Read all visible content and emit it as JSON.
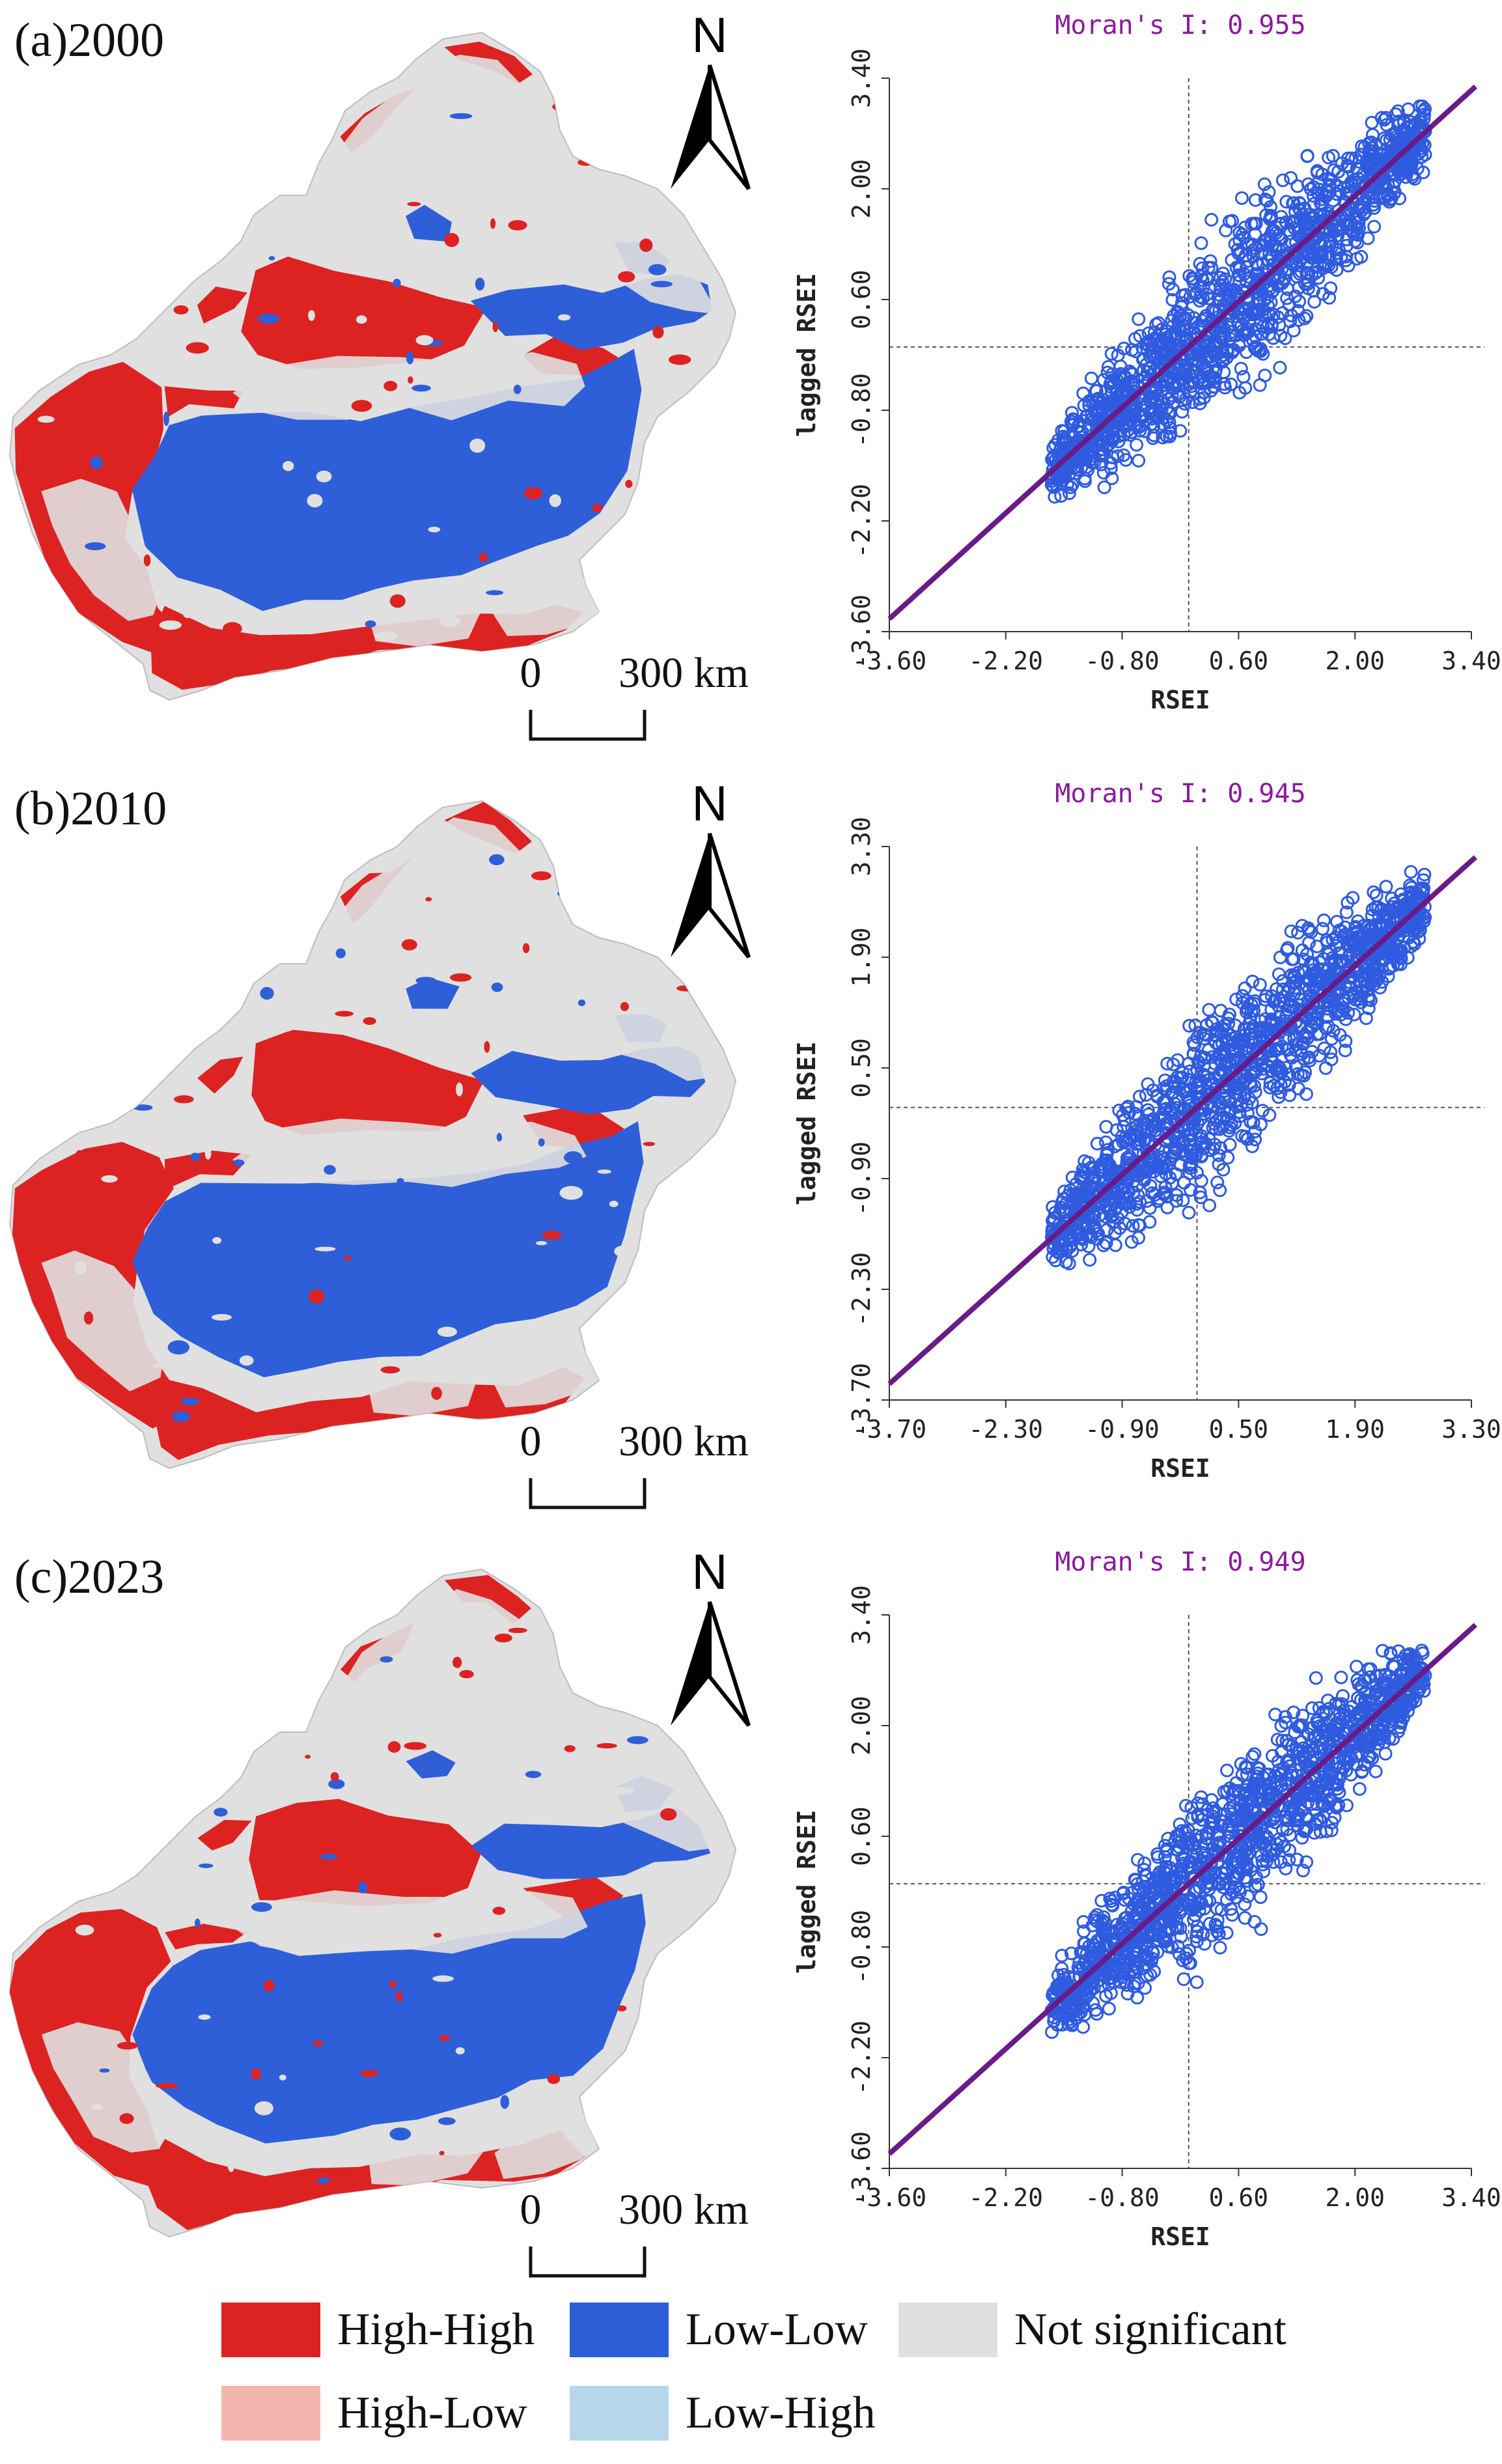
{
  "legend": {
    "items": [
      {
        "label": "High-High",
        "color": "#dd2222"
      },
      {
        "label": "Low-Low",
        "color": "#2e5fd8"
      },
      {
        "label": "Not significant",
        "color": "#e0e0e0"
      },
      {
        "label": "High-Low",
        "color": "#f2b6ae"
      },
      {
        "label": "Low-High",
        "color": "#b6d7ea"
      }
    ]
  },
  "map": {
    "north_label": "N",
    "scale_zero": "0",
    "scale_dist": "300 km"
  },
  "panels": [
    {
      "label": "(a)2000"
    },
    {
      "label": "(b)2010"
    },
    {
      "label": "(c)2023"
    }
  ],
  "colors": {
    "point": "#2f5be0",
    "fit_line": "#6a1b86",
    "title": "#8b1a9b"
  },
  "chart_data": [
    {
      "type": "scatter",
      "title": "Moran's I: 0.955",
      "xlabel": "RSEI",
      "ylabel": "lagged RSEI",
      "xlim": [
        -3.6,
        3.4
      ],
      "ylim": [
        -3.6,
        3.4
      ],
      "xticks": [
        "-3.60",
        "-2.20",
        "-0.80",
        "0.60",
        "2.00",
        "3.40"
      ],
      "yticks": [
        "-3.60",
        "-2.20",
        "-0.80",
        "0.60",
        "2.00",
        "3.40"
      ],
      "x_reference": 0,
      "y_reference": 0,
      "fit_line": {
        "slope": 0.955,
        "intercept": 0
      },
      "point_cloud": {
        "x_range": [
          -1.65,
          2.85
        ],
        "center": [
          0.6,
          0.55
        ],
        "spread": 0.5
      }
    },
    {
      "type": "scatter",
      "title": "Moran's I: 0.945",
      "xlabel": "RSEI",
      "ylabel": "lagged RSEI",
      "xlim": [
        -3.7,
        3.3
      ],
      "ylim": [
        -3.7,
        3.3
      ],
      "xticks": [
        "-3.70",
        "-2.30",
        "-0.90",
        "0.50",
        "1.90",
        "3.30"
      ],
      "yticks": [
        "-3.70",
        "-2.30",
        "-0.90",
        "0.50",
        "1.90",
        "3.30"
      ],
      "x_reference": 0,
      "y_reference": 0,
      "fit_line": {
        "slope": 0.945,
        "intercept": 0
      },
      "point_cloud": {
        "x_range": [
          -1.75,
          2.75
        ],
        "center": [
          0.5,
          0.45
        ],
        "spread": 0.5
      }
    },
    {
      "type": "scatter",
      "title": "Moran's I: 0.949",
      "xlabel": "RSEI",
      "ylabel": "lagged RSEI",
      "xlim": [
        -3.6,
        3.4
      ],
      "ylim": [
        -3.6,
        3.4
      ],
      "xticks": [
        "-3.60",
        "-2.20",
        "-0.80",
        "0.60",
        "2.00",
        "3.40"
      ],
      "yticks": [
        "-3.60",
        "-2.20",
        "-0.80",
        "0.60",
        "2.00",
        "3.40"
      ],
      "x_reference": 0,
      "y_reference": 0,
      "fit_line": {
        "slope": 0.949,
        "intercept": 0
      },
      "point_cloud": {
        "x_range": [
          -1.65,
          2.85
        ],
        "center": [
          0.6,
          0.55
        ],
        "spread": 0.5
      }
    }
  ]
}
